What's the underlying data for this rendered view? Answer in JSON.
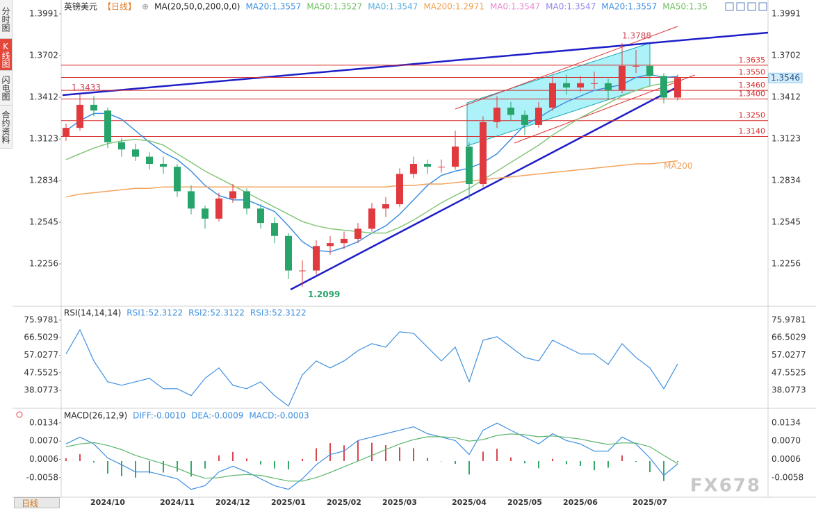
{
  "sidebar": [
    "分时图",
    "K线图",
    "闪电图",
    "合约资料"
  ],
  "period_tab": "日线",
  "watermark": "FX678",
  "chart_data": [
    {
      "type": "candlestick",
      "header": [
        {
          "text": "英镑美元",
          "color": "#222222"
        },
        {
          "text": "【日线】",
          "color": "#e07a22"
        },
        {
          "text": "⊕",
          "color": "#999999"
        },
        {
          "text": "MA(20,50,0,200,0,0)",
          "color": "#222222"
        },
        {
          "text": "MA20:1.3557",
          "color": "#3d8fe0"
        },
        {
          "text": "MA50:1.3527",
          "color": "#6cbf5a"
        },
        {
          "text": "MA0:1.3547",
          "color": "#5aaee0"
        },
        {
          "text": "MA200:1.2971",
          "color": "#f0a050"
        },
        {
          "text": "MA0:1.3547",
          "color": "#e58ad0"
        },
        {
          "text": "MA0:1.3547",
          "color": "#8f86e8"
        },
        {
          "text": "MA20:1.3557",
          "color": "#3d8fe0"
        },
        {
          "text": "MA50:1.35",
          "color": "#6cbf5a"
        }
      ],
      "x": [
        null,
        null,
        null,
        "2024/10",
        null,
        null,
        null,
        null,
        "2024/11",
        null,
        null,
        null,
        "2024/12",
        null,
        null,
        null,
        "2025/01",
        null,
        null,
        null,
        "2025/02",
        null,
        null,
        null,
        "2025/03",
        null,
        null,
        null,
        null,
        "2025/04",
        null,
        null,
        null,
        "2025/05",
        null,
        null,
        null,
        "2025/06",
        null,
        null,
        null,
        null,
        "2025/07",
        null,
        null
      ],
      "open": [
        1.314,
        1.32,
        1.336,
        1.332,
        1.31,
        1.305,
        1.3,
        1.295,
        1.293,
        1.276,
        1.264,
        1.257,
        1.271,
        1.276,
        1.264,
        1.254,
        1.245,
        1.221,
        1.221,
        1.238,
        1.24,
        1.243,
        1.25,
        1.264,
        1.267,
        1.288,
        1.295,
        1.293,
        1.293,
        1.307,
        1.281,
        1.324,
        1.334,
        1.329,
        1.322,
        1.334,
        1.351,
        1.348,
        1.351,
        1.351,
        1.346,
        1.363,
        1.363,
        1.356,
        1.341
      ],
      "high": [
        1.323,
        1.3433,
        1.342,
        1.334,
        1.313,
        1.309,
        1.303,
        1.3,
        1.295,
        1.28,
        1.266,
        1.275,
        1.281,
        1.278,
        1.267,
        1.258,
        1.247,
        1.228,
        1.242,
        1.245,
        1.248,
        1.254,
        1.268,
        1.272,
        1.292,
        1.3,
        1.298,
        1.298,
        1.318,
        1.31,
        1.328,
        1.342,
        1.338,
        1.332,
        1.338,
        1.356,
        1.357,
        1.356,
        1.359,
        1.354,
        1.3788,
        1.374,
        1.366,
        1.358,
        1.357
      ],
      "low": [
        1.311,
        1.318,
        1.328,
        1.306,
        1.3,
        1.297,
        1.291,
        1.288,
        1.272,
        1.26,
        1.25,
        1.255,
        1.268,
        1.26,
        1.25,
        1.24,
        1.215,
        1.2099,
        1.218,
        1.232,
        1.236,
        1.24,
        1.248,
        1.258,
        1.265,
        1.285,
        1.288,
        1.289,
        1.291,
        1.27,
        1.279,
        1.32,
        1.325,
        1.315,
        1.32,
        1.332,
        1.343,
        1.345,
        1.347,
        1.34,
        1.344,
        1.358,
        1.352,
        1.337,
        1.339
      ],
      "close": [
        1.32,
        1.336,
        1.332,
        1.31,
        1.305,
        1.3,
        1.295,
        1.293,
        1.276,
        1.264,
        1.257,
        1.271,
        1.276,
        1.264,
        1.254,
        1.245,
        1.221,
        1.221,
        1.238,
        1.24,
        1.243,
        1.25,
        1.264,
        1.267,
        1.288,
        1.295,
        1.293,
        1.293,
        1.307,
        1.281,
        1.324,
        1.334,
        1.329,
        1.322,
        1.334,
        1.351,
        1.348,
        1.351,
        1.351,
        1.346,
        1.363,
        1.363,
        1.356,
        1.341,
        1.3546
      ],
      "up_color": "#e0393e",
      "down_color": "#27a46a",
      "lines": [
        {
          "color": "#3d8fe0",
          "values": [
            1.318,
            1.325,
            1.33,
            1.33,
            1.326,
            1.318,
            1.31,
            1.303,
            1.298,
            1.29,
            1.28,
            1.273,
            1.27,
            1.27,
            1.266,
            1.262,
            1.252,
            1.241,
            1.235,
            1.234,
            1.237,
            1.241,
            1.247,
            1.252,
            1.26,
            1.27,
            1.28,
            1.287,
            1.29,
            1.292,
            1.296,
            1.302,
            1.312,
            1.322,
            1.327,
            1.333,
            1.338,
            1.342,
            1.346,
            1.348,
            1.35,
            1.355,
            1.357,
            1.355,
            1.3557
          ]
        },
        {
          "color": "#86c77a",
          "values": [
            1.298,
            1.302,
            1.306,
            1.309,
            1.311,
            1.312,
            1.311,
            1.308,
            1.302,
            1.296,
            1.29,
            1.285,
            1.28,
            1.275,
            1.27,
            1.265,
            1.26,
            1.255,
            1.252,
            1.25,
            1.249,
            1.248,
            1.247,
            1.247,
            1.251,
            1.256,
            1.262,
            1.268,
            1.273,
            1.278,
            1.284,
            1.29,
            1.296,
            1.302,
            1.308,
            1.315,
            1.321,
            1.327,
            1.332,
            1.337,
            1.342,
            1.346,
            1.349,
            1.351,
            1.3527
          ]
        },
        {
          "color": "#f2a35c",
          "values": [
            1.272,
            1.274,
            1.275,
            1.276,
            1.277,
            1.278,
            1.278,
            1.279,
            1.279,
            1.279,
            1.279,
            1.279,
            1.279,
            1.279,
            1.279,
            1.279,
            1.279,
            1.279,
            1.279,
            1.279,
            1.279,
            1.279,
            1.279,
            1.279,
            1.28,
            1.28,
            1.281,
            1.281,
            1.282,
            1.283,
            1.284,
            1.285,
            1.286,
            1.287,
            1.288,
            1.289,
            1.29,
            1.291,
            1.292,
            1.293,
            1.294,
            1.295,
            1.295,
            1.296,
            1.2971
          ]
        }
      ],
      "ma200_label": "MA200",
      "levels": [
        {
          "value": 1.3635,
          "label": "1.3635"
        },
        {
          "value": 1.355,
          "label": "1.3550"
        },
        {
          "value": 1.346,
          "label": "1.3460"
        },
        {
          "value": 1.34,
          "label": "1.3400"
        },
        {
          "value": 1.325,
          "label": "1.3250"
        },
        {
          "value": 1.314,
          "label": "1.3140"
        }
      ],
      "level_color": "#d62b2b",
      "ylim": [
        1.1967,
        1.4063
      ],
      "yticks": [
        1.3991,
        1.3702,
        1.3412,
        1.3123,
        1.2834,
        1.2545,
        1.2256
      ]
    },
    {
      "type": "line",
      "header": [
        {
          "text": "RSI(14,14,14)",
          "color": "#222222"
        },
        {
          "text": "RSI1:52.3122",
          "color": "#3d8fe0"
        },
        {
          "text": "RSI2:52.3122",
          "color": "#3d8fe0"
        },
        {
          "text": "RSI3:52.3122",
          "color": "#3d8fe0"
        }
      ],
      "series": [
        {
          "color": "#3d8fe0",
          "values": [
            57.65,
            70.74,
            53.9,
            42.68,
            40.81,
            42.68,
            44.55,
            38.94,
            38.94,
            35.2,
            44.55,
            50.17,
            40.81,
            38.94,
            42.68,
            35.2,
            29.59,
            46.43,
            53.9,
            50.17,
            53.9,
            59.52,
            63.26,
            61.39,
            69.62,
            68.87,
            61.39,
            53.9,
            61.39,
            42.68,
            65.13,
            67.0,
            61.39,
            55.78,
            53.9,
            65.13,
            61.39,
            57.65,
            57.65,
            52.04,
            63.26,
            55.78,
            50.17,
            38.94,
            52.3122
          ]
        }
      ],
      "ylim": [
        28.35,
        81.96
      ],
      "yticks": [
        75.9781,
        66.5029,
        57.0277,
        47.5525,
        38.0773
      ]
    },
    {
      "type": "macd",
      "header": [
        {
          "text": "MACD(26,12,9)",
          "color": "#222222"
        },
        {
          "text": "DIFF:-0.0010",
          "color": "#3d8fe0"
        },
        {
          "text": "DEA:-0.0009",
          "color": "#3d8fe0"
        },
        {
          "text": "MACD:-0.0003",
          "color": "#3d8fe0"
        }
      ],
      "diff": {
        "color": "#3d8fe0",
        "values": [
          0.006,
          0.0084,
          0.006,
          0.0011,
          -0.0013,
          -0.0038,
          -0.0038,
          -0.005,
          -0.0062,
          -0.0099,
          -0.0086,
          -0.0038,
          -0.0018,
          -0.0038,
          -0.0062,
          -0.0086,
          -0.0099,
          -0.0062,
          -0.0013,
          0.0023,
          0.0035,
          0.0072,
          0.0084,
          0.0096,
          0.0108,
          0.012,
          0.0096,
          0.0084,
          0.0072,
          0.0023,
          0.0108,
          0.0133,
          0.0108,
          0.0084,
          0.006,
          0.0096,
          0.0072,
          0.006,
          0.0035,
          0.0035,
          0.0084,
          0.006,
          0.0011,
          -0.005,
          -0.001
        ]
      },
      "dea": {
        "color": "#5ab56a",
        "values": [
          0.005,
          0.006,
          0.0065,
          0.0055,
          0.004,
          0.002,
          0.0005,
          -0.001,
          -0.0025,
          -0.0045,
          -0.006,
          -0.0058,
          -0.005,
          -0.0047,
          -0.005,
          -0.006,
          -0.007,
          -0.007,
          -0.0058,
          -0.004,
          -0.002,
          0.0,
          0.002,
          0.004,
          0.006,
          0.0075,
          0.0085,
          0.0085,
          0.0082,
          0.007,
          0.0075,
          0.009,
          0.0095,
          0.0092,
          0.0085,
          0.0088,
          0.0083,
          0.0077,
          0.0067,
          0.0058,
          0.0064,
          0.0063,
          0.005,
          0.002,
          -0.0009
        ]
      },
      "hist": {
        "up_color": "#d9464d",
        "down_color": "#35a86b",
        "values": [
          0.001,
          0.0024,
          -0.0005,
          -0.0044,
          -0.0053,
          -0.0058,
          -0.0043,
          -0.004,
          -0.0037,
          -0.0054,
          -0.0026,
          0.002,
          0.0032,
          0.0009,
          -0.0012,
          -0.0026,
          -0.0029,
          0.0008,
          0.0045,
          0.0063,
          0.0055,
          0.0072,
          0.0064,
          0.0056,
          0.0048,
          0.0045,
          0.0011,
          -0.0001,
          -0.001,
          -0.0047,
          0.0033,
          0.0043,
          0.0013,
          -0.0008,
          -0.0025,
          0.0008,
          -0.0011,
          -0.0017,
          -0.0032,
          -0.0023,
          0.002,
          -0.0003,
          -0.0039,
          -0.007,
          -0.0003
        ]
      },
      "ylim": [
        -0.0124,
        0.0175
      ],
      "yticks": [
        0.0134,
        {
          "value": 0.007,
          "label": "0.0070"
        },
        0.0006,
        -0.0058
      ]
    }
  ]
}
